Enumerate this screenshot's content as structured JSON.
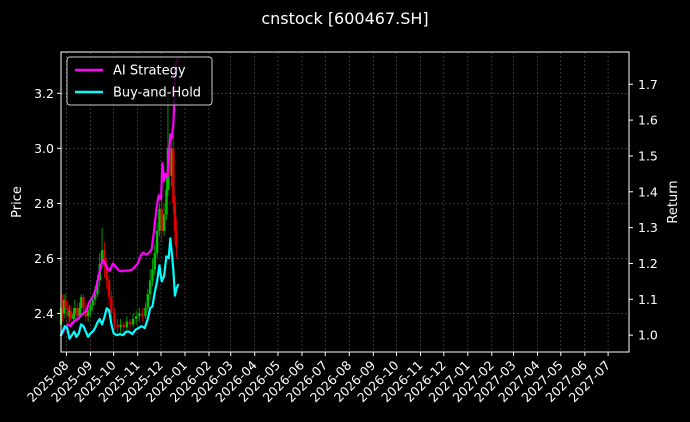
{
  "chart_data": {
    "type": "line",
    "title": "cnstock [600467.SH]",
    "ylabel_left": "Price",
    "ylabel_right": "Return",
    "x_ticks": [
      "2025-08",
      "2025-09",
      "2025-10",
      "2025-11",
      "2025-12",
      "2026-01",
      "2026-02",
      "2026-03",
      "2026-04",
      "2026-05",
      "2026-06",
      "2026-07",
      "2026-08",
      "2026-09",
      "2026-10",
      "2026-11",
      "2026-12",
      "2027-01",
      "2027-02",
      "2027-03",
      "2027-04",
      "2027-05",
      "2027-06",
      "2027-07"
    ],
    "x_range": [
      "2025-07-25",
      "2027-07-28"
    ],
    "y_left_ticks": [
      "2.4",
      "2.6",
      "2.8",
      "3.0",
      "3.2"
    ],
    "y_left_range": [
      2.26,
      3.35
    ],
    "y_right_ticks": [
      "1.0",
      "1.1",
      "1.2",
      "1.3",
      "1.4",
      "1.5",
      "1.6",
      "1.7"
    ],
    "y_right_range": [
      0.953,
      1.79
    ],
    "grid": true,
    "legend_placement": "top-left",
    "series": [
      {
        "name": "AI Strategy",
        "color": "#ff00ff",
        "axis": "right",
        "points": [
          [
            "2025-07-25",
            1.0
          ],
          [
            "2025-07-28",
            1.01
          ],
          [
            "2025-07-31",
            1.02
          ],
          [
            "2025-08-03",
            1.03
          ],
          [
            "2025-08-06",
            1.025
          ],
          [
            "2025-08-09",
            1.035
          ],
          [
            "2025-08-12",
            1.04
          ],
          [
            "2025-08-15",
            1.045
          ],
          [
            "2025-08-18",
            1.05
          ],
          [
            "2025-08-21",
            1.058
          ],
          [
            "2025-08-24",
            1.062
          ],
          [
            "2025-08-27",
            1.07
          ],
          [
            "2025-08-30",
            1.09
          ],
          [
            "2025-09-02",
            1.1
          ],
          [
            "2025-09-05",
            1.11
          ],
          [
            "2025-09-08",
            1.13
          ],
          [
            "2025-09-11",
            1.16
          ],
          [
            "2025-09-14",
            1.19
          ],
          [
            "2025-09-17",
            1.21
          ],
          [
            "2025-09-20",
            1.2
          ],
          [
            "2025-09-23",
            1.185
          ],
          [
            "2025-09-26",
            1.18
          ],
          [
            "2025-09-30",
            1.2
          ],
          [
            "2025-10-04",
            1.19
          ],
          [
            "2025-10-08",
            1.18
          ],
          [
            "2025-10-12",
            1.178
          ],
          [
            "2025-10-16",
            1.18
          ],
          [
            "2025-10-20",
            1.18
          ],
          [
            "2025-10-24",
            1.182
          ],
          [
            "2025-10-28",
            1.19
          ],
          [
            "2025-11-01",
            1.2
          ],
          [
            "2025-11-05",
            1.222
          ],
          [
            "2025-11-08",
            1.23
          ],
          [
            "2025-11-12",
            1.225
          ],
          [
            "2025-11-16",
            1.23
          ],
          [
            "2025-11-19",
            1.24
          ],
          [
            "2025-11-22",
            1.29
          ],
          [
            "2025-11-25",
            1.35
          ],
          [
            "2025-11-28",
            1.39
          ],
          [
            "2025-12-01",
            1.38
          ],
          [
            "2025-12-03",
            1.48
          ],
          [
            "2025-12-05",
            1.43
          ],
          [
            "2025-12-07",
            1.45
          ],
          [
            "2025-12-09",
            1.44
          ],
          [
            "2025-12-11",
            1.49
          ],
          [
            "2025-12-13",
            1.56
          ],
          [
            "2025-12-15",
            1.55
          ],
          [
            "2025-12-17",
            1.59
          ],
          [
            "2025-12-20",
            1.76
          ],
          [
            "2025-12-23",
            1.77
          ]
        ]
      },
      {
        "name": "Buy-and-Hold",
        "color": "#00ffff",
        "axis": "right",
        "points": [
          [
            "2025-07-25",
            1.0
          ],
          [
            "2025-07-27",
            1.01
          ],
          [
            "2025-07-30",
            1.025
          ],
          [
            "2025-08-02",
            1.02
          ],
          [
            "2025-08-05",
            0.99
          ],
          [
            "2025-08-08",
            1.0
          ],
          [
            "2025-08-11",
            1.01
          ],
          [
            "2025-08-14",
            0.995
          ],
          [
            "2025-08-17",
            1.005
          ],
          [
            "2025-08-20",
            1.03
          ],
          [
            "2025-08-23",
            1.025
          ],
          [
            "2025-08-26",
            1.01
          ],
          [
            "2025-08-29",
            0.995
          ],
          [
            "2025-09-01",
            1.005
          ],
          [
            "2025-09-04",
            1.01
          ],
          [
            "2025-09-07",
            1.02
          ],
          [
            "2025-09-10",
            1.035
          ],
          [
            "2025-09-13",
            1.045
          ],
          [
            "2025-09-16",
            1.03
          ],
          [
            "2025-09-19",
            1.05
          ],
          [
            "2025-09-22",
            1.075
          ],
          [
            "2025-09-25",
            1.07
          ],
          [
            "2025-09-28",
            1.03
          ],
          [
            "2025-10-01",
            1.005
          ],
          [
            "2025-10-05",
            1.0
          ],
          [
            "2025-10-09",
            1.003
          ],
          [
            "2025-10-13",
            1.0
          ],
          [
            "2025-10-17",
            1.01
          ],
          [
            "2025-10-21",
            1.01
          ],
          [
            "2025-10-25",
            1.003
          ],
          [
            "2025-10-29",
            1.015
          ],
          [
            "2025-11-02",
            1.02
          ],
          [
            "2025-11-06",
            1.025
          ],
          [
            "2025-11-10",
            1.02
          ],
          [
            "2025-11-14",
            1.045
          ],
          [
            "2025-11-17",
            1.075
          ],
          [
            "2025-11-20",
            1.08
          ],
          [
            "2025-11-23",
            1.12
          ],
          [
            "2025-11-26",
            1.15
          ],
          [
            "2025-11-29",
            1.195
          ],
          [
            "2025-12-02",
            1.15
          ],
          [
            "2025-12-05",
            1.165
          ],
          [
            "2025-12-08",
            1.22
          ],
          [
            "2025-12-11",
            1.215
          ],
          [
            "2025-12-13",
            1.27
          ],
          [
            "2025-12-15",
            1.23
          ],
          [
            "2025-12-17",
            1.18
          ],
          [
            "2025-12-19",
            1.11
          ],
          [
            "2025-12-21",
            1.13
          ],
          [
            "2025-12-23",
            1.14
          ]
        ]
      }
    ],
    "candlesticks": {
      "up_color": "#00c000",
      "down_color": "#e00000",
      "items": [
        [
          "2025-07-25",
          2.36,
          2.42,
          2.33,
          2.44
        ],
        [
          "2025-07-27",
          2.42,
          2.4,
          2.37,
          2.47
        ],
        [
          "2025-07-29",
          2.4,
          2.45,
          2.38,
          2.47
        ],
        [
          "2025-07-31",
          2.45,
          2.42,
          2.39,
          2.47
        ],
        [
          "2025-08-03",
          2.42,
          2.39,
          2.36,
          2.44
        ],
        [
          "2025-08-05",
          2.39,
          2.41,
          2.37,
          2.43
        ],
        [
          "2025-08-07",
          2.41,
          2.38,
          2.36,
          2.43
        ],
        [
          "2025-08-10",
          2.38,
          2.4,
          2.36,
          2.42
        ],
        [
          "2025-08-12",
          2.4,
          2.42,
          2.38,
          2.45
        ],
        [
          "2025-08-15",
          2.42,
          2.39,
          2.37,
          2.44
        ],
        [
          "2025-08-18",
          2.39,
          2.42,
          2.38,
          2.44
        ],
        [
          "2025-08-20",
          2.42,
          2.46,
          2.4,
          2.47
        ],
        [
          "2025-08-23",
          2.46,
          2.42,
          2.4,
          2.47
        ],
        [
          "2025-08-26",
          2.42,
          2.39,
          2.37,
          2.44
        ],
        [
          "2025-08-29",
          2.39,
          2.41,
          2.37,
          2.43
        ],
        [
          "2025-09-01",
          2.41,
          2.43,
          2.39,
          2.45
        ],
        [
          "2025-09-04",
          2.43,
          2.45,
          2.41,
          2.47
        ],
        [
          "2025-09-07",
          2.45,
          2.47,
          2.43,
          2.5
        ],
        [
          "2025-09-10",
          2.47,
          2.52,
          2.46,
          2.54
        ],
        [
          "2025-09-13",
          2.52,
          2.58,
          2.5,
          2.62
        ],
        [
          "2025-09-16",
          2.58,
          2.63,
          2.56,
          2.71
        ],
        [
          "2025-09-19",
          2.63,
          2.57,
          2.53,
          2.66
        ],
        [
          "2025-09-22",
          2.57,
          2.52,
          2.49,
          2.6
        ],
        [
          "2025-09-25",
          2.52,
          2.46,
          2.43,
          2.54
        ],
        [
          "2025-09-28",
          2.46,
          2.4,
          2.37,
          2.48
        ],
        [
          "2025-10-02",
          2.4,
          2.36,
          2.34,
          2.42
        ],
        [
          "2025-10-06",
          2.36,
          2.35,
          2.33,
          2.38
        ],
        [
          "2025-10-10",
          2.35,
          2.36,
          2.33,
          2.38
        ],
        [
          "2025-10-14",
          2.36,
          2.35,
          2.33,
          2.37
        ],
        [
          "2025-10-18",
          2.35,
          2.37,
          2.34,
          2.39
        ],
        [
          "2025-10-22",
          2.37,
          2.36,
          2.34,
          2.38
        ],
        [
          "2025-10-26",
          2.36,
          2.38,
          2.35,
          2.4
        ],
        [
          "2025-10-30",
          2.38,
          2.39,
          2.36,
          2.41
        ],
        [
          "2025-11-03",
          2.39,
          2.4,
          2.37,
          2.42
        ],
        [
          "2025-11-07",
          2.4,
          2.39,
          2.37,
          2.42
        ],
        [
          "2025-11-11",
          2.39,
          2.42,
          2.38,
          2.44
        ],
        [
          "2025-11-14",
          2.42,
          2.47,
          2.41,
          2.49
        ],
        [
          "2025-11-17",
          2.47,
          2.52,
          2.45,
          2.56
        ],
        [
          "2025-11-20",
          2.52,
          2.56,
          2.5,
          2.6
        ],
        [
          "2025-11-23",
          2.56,
          2.62,
          2.54,
          2.65
        ],
        [
          "2025-11-26",
          2.62,
          2.7,
          2.6,
          2.73
        ],
        [
          "2025-11-29",
          2.7,
          2.78,
          2.68,
          2.8
        ],
        [
          "2025-12-02",
          2.78,
          2.7,
          2.66,
          2.83
        ],
        [
          "2025-12-05",
          2.7,
          2.76,
          2.68,
          2.8
        ],
        [
          "2025-12-08",
          2.76,
          2.85,
          2.74,
          2.9
        ],
        [
          "2025-12-10",
          2.85,
          3.0,
          2.83,
          3.2
        ],
        [
          "2025-12-12",
          3.0,
          2.9,
          2.85,
          3.05
        ],
        [
          "2025-12-15",
          2.9,
          3.0,
          2.86,
          3.05
        ],
        [
          "2025-12-17",
          3.0,
          2.8,
          2.76,
          3.05
        ],
        [
          "2025-12-19",
          2.8,
          2.7,
          2.65,
          2.83
        ],
        [
          "2025-12-21",
          2.7,
          2.64,
          2.6,
          2.75
        ]
      ]
    }
  },
  "legend": {
    "items": [
      "AI Strategy",
      "Buy-and-Hold"
    ]
  }
}
